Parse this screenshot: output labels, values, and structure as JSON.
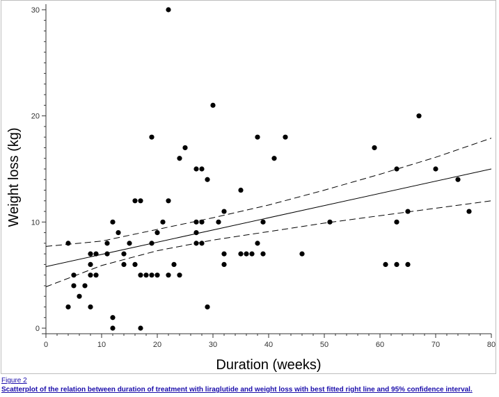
{
  "caption": {
    "figure_label": "Figure 2",
    "text": "Scatterplot of the relation between duration of treatment with liraglutide and weight loss with best fitted right line and 95% confidence interval."
  },
  "colors": {
    "point": "#000000",
    "line": "#000000",
    "caption_link": "#1a0dab",
    "frame": "#bdbdbd"
  },
  "chart_data": {
    "type": "scatter",
    "title": "",
    "xlabel": "Duration (weeks)",
    "ylabel": "Weight loss (kg)",
    "xlim": [
      0,
      80
    ],
    "ylim": [
      0,
      30
    ],
    "xticks": [
      0,
      10,
      20,
      30,
      40,
      50,
      60,
      70,
      80
    ],
    "yticks": [
      0,
      10,
      20,
      30
    ],
    "grid": false,
    "legend": "none",
    "points": [
      [
        4,
        8
      ],
      [
        4,
        2
      ],
      [
        5,
        5
      ],
      [
        5,
        4
      ],
      [
        6,
        3
      ],
      [
        7,
        4
      ],
      [
        8,
        7
      ],
      [
        8,
        6
      ],
      [
        8,
        5
      ],
      [
        8,
        2
      ],
      [
        9,
        7
      ],
      [
        9,
        5
      ],
      [
        11,
        8
      ],
      [
        11,
        7
      ],
      [
        12,
        10
      ],
      [
        12,
        1
      ],
      [
        12,
        0
      ],
      [
        13,
        9
      ],
      [
        14,
        7
      ],
      [
        14,
        6
      ],
      [
        15,
        8
      ],
      [
        16,
        12
      ],
      [
        16,
        6
      ],
      [
        17,
        12
      ],
      [
        17,
        5
      ],
      [
        17,
        0
      ],
      [
        18,
        5
      ],
      [
        19,
        18
      ],
      [
        19,
        8
      ],
      [
        19,
        5
      ],
      [
        20,
        9
      ],
      [
        20,
        5
      ],
      [
        21,
        10
      ],
      [
        22,
        30
      ],
      [
        22,
        12
      ],
      [
        22,
        5
      ],
      [
        23,
        6
      ],
      [
        24,
        16
      ],
      [
        24,
        5
      ],
      [
        25,
        17
      ],
      [
        27,
        15
      ],
      [
        27,
        10
      ],
      [
        27,
        9
      ],
      [
        27,
        8
      ],
      [
        28,
        15
      ],
      [
        28,
        10
      ],
      [
        28,
        8
      ],
      [
        29,
        14
      ],
      [
        29,
        2
      ],
      [
        30,
        21
      ],
      [
        31,
        10
      ],
      [
        32,
        11
      ],
      [
        32,
        7
      ],
      [
        32,
        6
      ],
      [
        35,
        13
      ],
      [
        35,
        7
      ],
      [
        36,
        7
      ],
      [
        37,
        7
      ],
      [
        38,
        18
      ],
      [
        38,
        8
      ],
      [
        39,
        10
      ],
      [
        39,
        7
      ],
      [
        41,
        16
      ],
      [
        43,
        18
      ],
      [
        46,
        7
      ],
      [
        51,
        10
      ],
      [
        59,
        17
      ],
      [
        61,
        6
      ],
      [
        63,
        15
      ],
      [
        63,
        10
      ],
      [
        63,
        6
      ],
      [
        65,
        11
      ],
      [
        65,
        6
      ],
      [
        67,
        20
      ],
      [
        70,
        15
      ],
      [
        74,
        14
      ],
      [
        76,
        11
      ]
    ],
    "fit_line": {
      "intercept": 5.8,
      "slope": 0.115
    },
    "confidence_band": {
      "x": [
        0,
        10,
        20,
        30,
        40,
        50,
        60,
        70,
        80
      ],
      "lower": [
        3.9,
        5.9,
        7.3,
        8.3,
        9.1,
        9.9,
        10.6,
        11.3,
        12.0
      ],
      "upper": [
        7.7,
        8.2,
        9.3,
        10.4,
        11.6,
        13.0,
        14.5,
        16.1,
        17.9
      ]
    }
  }
}
